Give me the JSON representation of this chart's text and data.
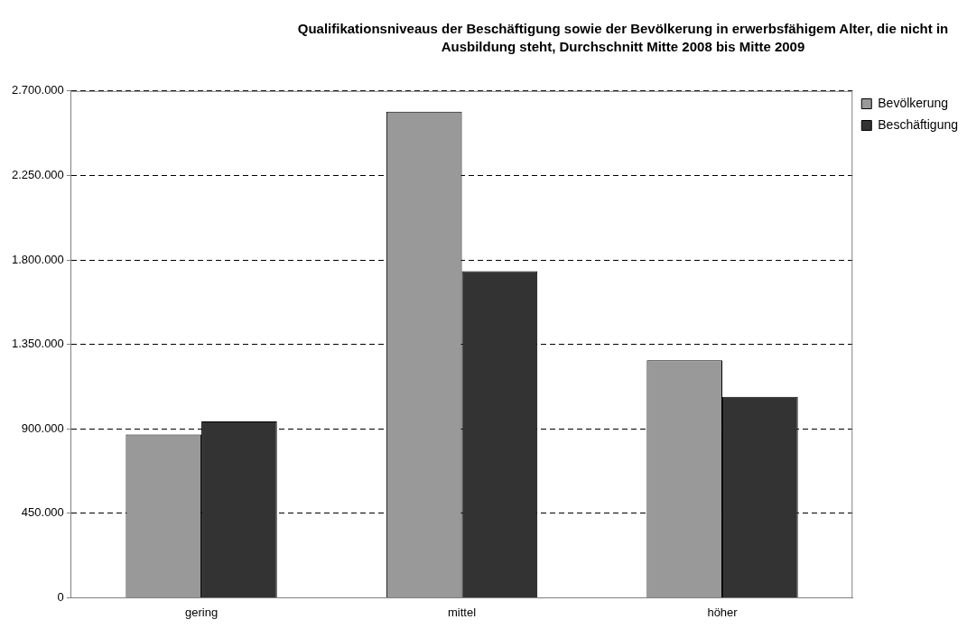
{
  "chart_data": {
    "type": "bar",
    "title": "Qualifikationsniveaus der Beschäftigung sowie der Bevölkerung in erwerbsfähigem Alter, die nicht in Ausbildung steht, Durchschnitt Mitte 2008 bis Mitte 2009",
    "categories": [
      "gering",
      "mittel",
      "höher"
    ],
    "series": [
      {
        "name": "Bevölkerung",
        "color": "#999999",
        "values": [
          870000,
          2590000,
          1265000
        ]
      },
      {
        "name": "Beschäftigung",
        "color": "#333333",
        "values": [
          940000,
          1740000,
          1070000
        ]
      }
    ],
    "ylim": [
      0,
      2700000
    ],
    "yticks": [
      {
        "value": 0,
        "label": "0"
      },
      {
        "value": 450000,
        "label": "450.000"
      },
      {
        "value": 900000,
        "label": "900.000"
      },
      {
        "value": 1350000,
        "label": "1.350.000"
      },
      {
        "value": 1800000,
        "label": "1.800.000"
      },
      {
        "value": 2250000,
        "label": "2.250.000"
      },
      {
        "value": 2700000,
        "label": "2.700.000"
      }
    ],
    "grid": "y",
    "legend": "right"
  }
}
